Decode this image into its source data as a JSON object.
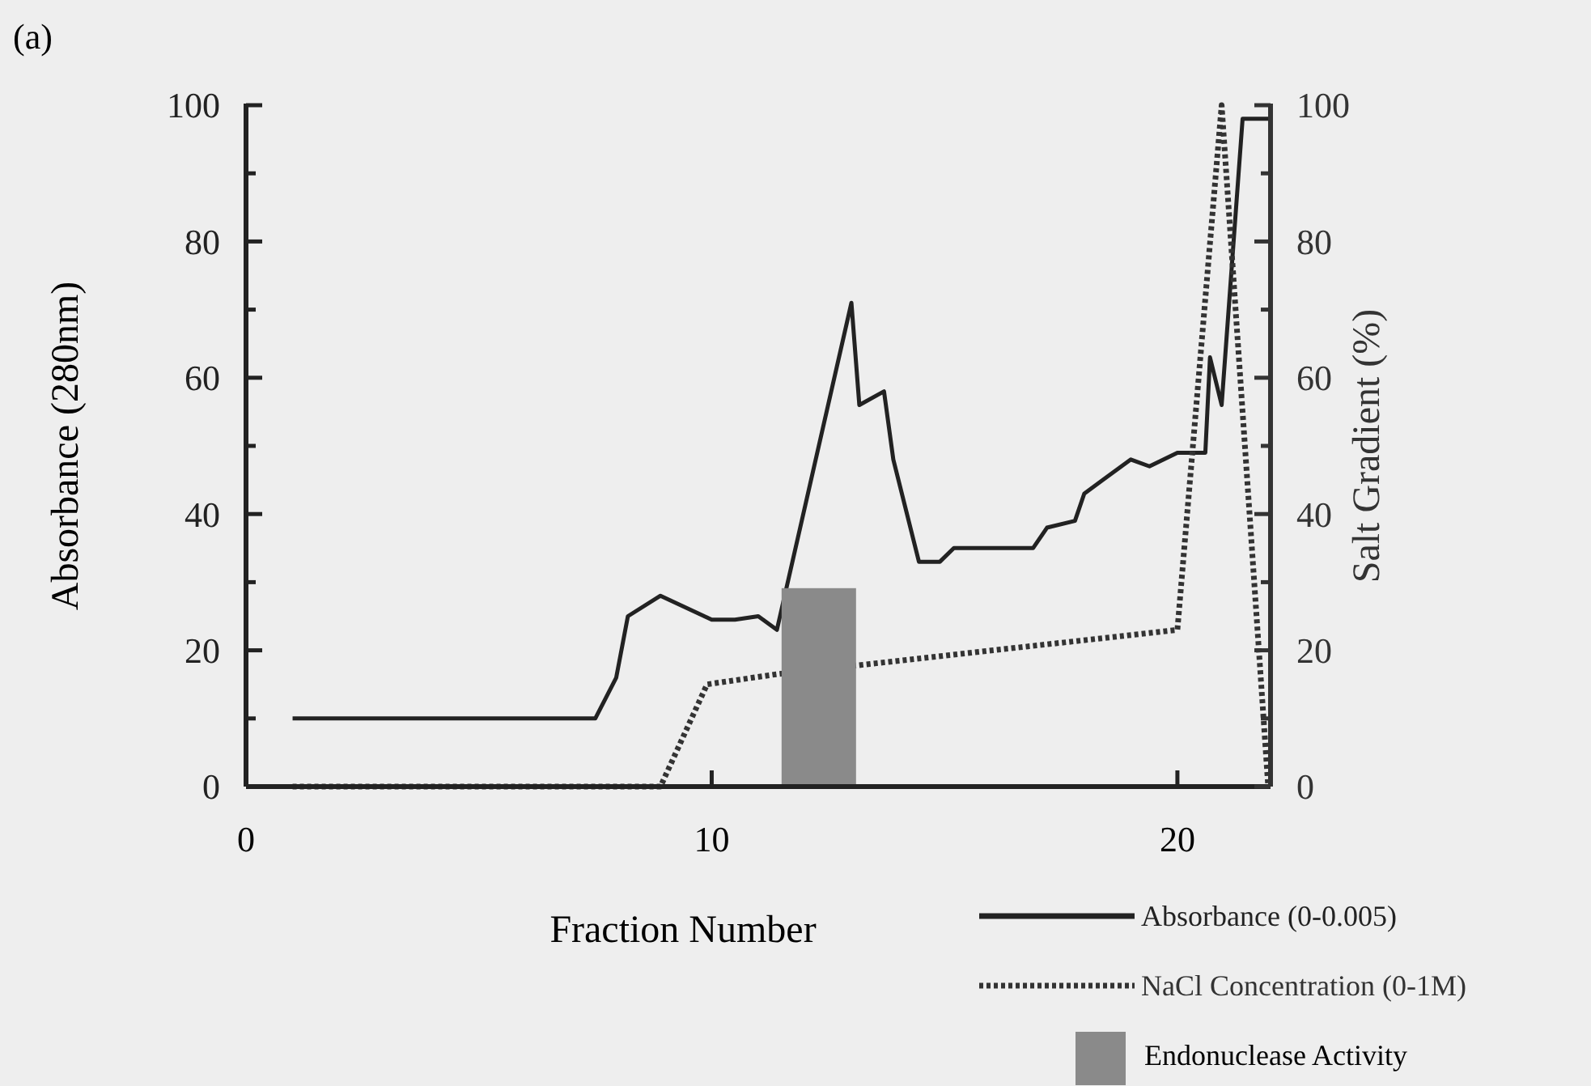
{
  "chart_data": {
    "type": "line",
    "annotations": [
      "(a)"
    ],
    "xlabel": "Fraction Number",
    "ylabel": "Absorbance (280nm)",
    "y2label": "Salt Gradient (%)",
    "xlim": [
      0,
      22
    ],
    "xticks": [
      0,
      10,
      20
    ],
    "ylim": [
      0,
      100
    ],
    "yticks": [
      0,
      {
        "value": 10,
        "label": null
      },
      20,
      {
        "value": 30,
        "label": null
      },
      40,
      {
        "value": 50,
        "label": null
      },
      60,
      {
        "value": 70,
        "label": null
      },
      80,
      {
        "value": 90,
        "label": null
      },
      100
    ],
    "y2lim": [
      0,
      100
    ],
    "y2ticks": [
      0,
      {
        "value": 10,
        "label": null
      },
      20,
      {
        "value": 30,
        "label": null
      },
      40,
      {
        "value": 50,
        "label": null
      },
      60,
      {
        "value": 70,
        "label": null
      },
      80,
      {
        "value": 90,
        "label": null
      },
      100
    ],
    "legend": "bottom right",
    "grid": false,
    "marker": "none",
    "series": [
      {
        "name": "Absorbance (0-0.005)",
        "color": "#222222",
        "line_style": "solid",
        "x": [
          1,
          7.5,
          7.95,
          8.2,
          8.9,
          10,
          10.5,
          11,
          11.4,
          13,
          13.17,
          13.7,
          13.9,
          14.45,
          14.9,
          15.2,
          16.9,
          17.2,
          17.8,
          18,
          18.4,
          19,
          19.4,
          20,
          20.6,
          20.7,
          20.95,
          21.4,
          22
        ],
        "values": [
          10,
          10,
          16,
          25,
          28,
          24.5,
          24.5,
          25,
          23,
          71,
          56,
          58,
          48,
          33,
          33,
          35,
          35,
          38,
          39,
          43,
          45,
          48,
          47,
          49,
          49,
          63,
          56,
          98,
          98
        ]
      },
      {
        "name": "NaCl Concentration (0-1M)",
        "type": "line",
        "axis": "y2",
        "color": "#333333",
        "line_style": "dotted",
        "x": [
          1,
          8.9,
          9.9,
          11.4,
          13.4,
          20,
          20.95,
          21.95
        ],
        "values": [
          0,
          0,
          15,
          16.5,
          18,
          23,
          100,
          0
        ]
      },
      {
        "name": "Endonuclease Activity",
        "type": "bar",
        "color": "#8a8a8a",
        "x": [
          12.3
        ],
        "values": [
          29
        ]
      }
    ]
  }
}
